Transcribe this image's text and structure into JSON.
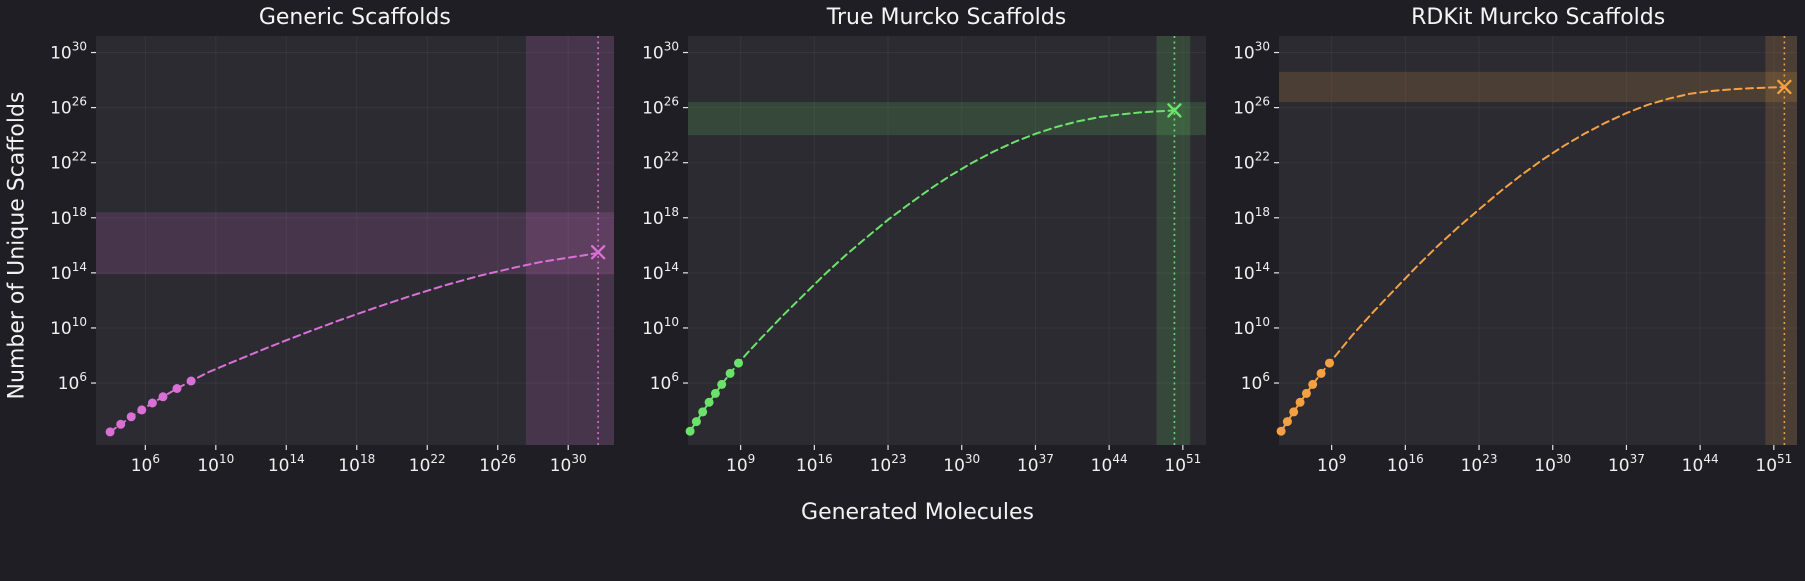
{
  "figure": {
    "background": "#1e1e24",
    "panel_background": "#2b2b31",
    "text_color": "#f0f0f0",
    "grid_color": "rgba(255,255,255,0.05)",
    "xlabel": "Generated Molecules",
    "ylabel": "Number of Unique Scaffolds"
  },
  "chart_data": [
    {
      "type": "line",
      "title": "Generic Scaffolds",
      "color": "#da70d6",
      "xscale": "log",
      "yscale": "log",
      "xlim_log10": [
        3.2,
        32.6
      ],
      "ylim_log10": [
        1.5,
        31.2
      ],
      "xticks_log10": [
        6,
        10,
        14,
        18,
        22,
        26,
        30
      ],
      "yticks_log10": [
        6,
        10,
        14,
        18,
        22,
        26,
        30
      ],
      "curve_log10": [
        [
          4.0,
          2.45
        ],
        [
          4.6,
          3.0
        ],
        [
          5.2,
          3.55
        ],
        [
          5.8,
          4.05
        ],
        [
          6.4,
          4.55
        ],
        [
          7.0,
          5.0
        ],
        [
          7.8,
          5.6
        ],
        [
          8.6,
          6.15
        ],
        [
          9.6,
          6.8
        ],
        [
          11,
          7.55
        ],
        [
          13,
          8.6
        ],
        [
          15,
          9.6
        ],
        [
          17,
          10.55
        ],
        [
          19,
          11.45
        ],
        [
          21,
          12.3
        ],
        [
          23,
          13.1
        ],
        [
          25,
          13.8
        ],
        [
          27,
          14.4
        ],
        [
          28.5,
          14.8
        ],
        [
          30,
          15.1
        ],
        [
          31,
          15.3
        ],
        [
          31.7,
          15.45
        ]
      ],
      "points_log10": [
        [
          4.0,
          2.45
        ],
        [
          4.6,
          3.0
        ],
        [
          5.2,
          3.55
        ],
        [
          5.8,
          4.05
        ],
        [
          6.4,
          4.55
        ],
        [
          7.0,
          5.0
        ],
        [
          7.8,
          5.6
        ],
        [
          8.6,
          6.15
        ]
      ],
      "extrapolated_point_log10": [
        31.7,
        15.5
      ],
      "vline_log10": 31.7,
      "vband_log10": [
        27.6,
        32.6
      ],
      "hband_log10": [
        13.9,
        18.4
      ],
      "curve_style": "dashed",
      "observed_marker": "circle",
      "extrapolated_marker": "x"
    },
    {
      "type": "line",
      "title": "True Murcko Scaffolds",
      "color": "#6be36b",
      "xscale": "log",
      "yscale": "log",
      "xlim_log10": [
        4.0,
        53.2
      ],
      "ylim_log10": [
        1.5,
        31.2
      ],
      "xticks_log10": [
        9,
        16,
        23,
        30,
        37,
        44,
        51
      ],
      "yticks_log10": [
        6,
        10,
        14,
        18,
        22,
        26,
        30
      ],
      "curve_log10": [
        [
          4.2,
          2.5
        ],
        [
          4.8,
          3.2
        ],
        [
          5.4,
          3.9
        ],
        [
          6.0,
          4.6
        ],
        [
          6.6,
          5.25
        ],
        [
          7.2,
          5.9
        ],
        [
          8.0,
          6.7
        ],
        [
          8.8,
          7.45
        ],
        [
          9.6,
          8.15
        ],
        [
          11,
          9.3
        ],
        [
          13,
          10.9
        ],
        [
          15,
          12.4
        ],
        [
          17,
          13.9
        ],
        [
          19,
          15.3
        ],
        [
          21,
          16.6
        ],
        [
          23,
          17.85
        ],
        [
          25,
          19.0
        ],
        [
          27,
          20.1
        ],
        [
          29,
          21.1
        ],
        [
          31,
          22.0
        ],
        [
          33,
          22.8
        ],
        [
          35,
          23.5
        ],
        [
          37,
          24.1
        ],
        [
          39,
          24.6
        ],
        [
          41,
          25.0
        ],
        [
          43,
          25.3
        ],
        [
          45,
          25.5
        ],
        [
          47,
          25.65
        ],
        [
          49,
          25.75
        ],
        [
          50.2,
          25.8
        ]
      ],
      "points_log10": [
        [
          4.2,
          2.5
        ],
        [
          4.8,
          3.2
        ],
        [
          5.4,
          3.9
        ],
        [
          6.0,
          4.6
        ],
        [
          6.6,
          5.25
        ],
        [
          7.2,
          5.9
        ],
        [
          8.0,
          6.7
        ],
        [
          8.8,
          7.45
        ]
      ],
      "extrapolated_point_log10": [
        50.2,
        25.8
      ],
      "vline_log10": 50.2,
      "vband_log10": [
        48.5,
        51.7
      ],
      "hband_log10": [
        24.0,
        26.4
      ],
      "curve_style": "dashed",
      "observed_marker": "circle",
      "extrapolated_marker": "x"
    },
    {
      "type": "line",
      "title": "RDKit Murcko Scaffolds",
      "color": "#f5a142",
      "xscale": "log",
      "yscale": "log",
      "xlim_log10": [
        4.0,
        53.2
      ],
      "ylim_log10": [
        1.5,
        31.2
      ],
      "xticks_log10": [
        9,
        16,
        23,
        30,
        37,
        44,
        51
      ],
      "yticks_log10": [
        6,
        10,
        14,
        18,
        22,
        26,
        30
      ],
      "curve_log10": [
        [
          4.2,
          2.5
        ],
        [
          4.8,
          3.2
        ],
        [
          5.4,
          3.9
        ],
        [
          6.0,
          4.6
        ],
        [
          6.6,
          5.25
        ],
        [
          7.2,
          5.9
        ],
        [
          8.0,
          6.7
        ],
        [
          8.8,
          7.45
        ],
        [
          9.6,
          8.2
        ],
        [
          11,
          9.5
        ],
        [
          13,
          11.2
        ],
        [
          15,
          12.8
        ],
        [
          17,
          14.4
        ],
        [
          19,
          15.9
        ],
        [
          21,
          17.3
        ],
        [
          23,
          18.6
        ],
        [
          25,
          19.9
        ],
        [
          27,
          21.1
        ],
        [
          29,
          22.2
        ],
        [
          31,
          23.2
        ],
        [
          33,
          24.1
        ],
        [
          35,
          24.9
        ],
        [
          37,
          25.6
        ],
        [
          39,
          26.2
        ],
        [
          41,
          26.65
        ],
        [
          43,
          27.0
        ],
        [
          45,
          27.2
        ],
        [
          47,
          27.33
        ],
        [
          49,
          27.42
        ],
        [
          51,
          27.47
        ],
        [
          52.0,
          27.5
        ]
      ],
      "points_log10": [
        [
          4.2,
          2.5
        ],
        [
          4.8,
          3.2
        ],
        [
          5.4,
          3.9
        ],
        [
          6.0,
          4.6
        ],
        [
          6.6,
          5.25
        ],
        [
          7.2,
          5.9
        ],
        [
          8.0,
          6.7
        ],
        [
          8.8,
          7.45
        ]
      ],
      "extrapolated_point_log10": [
        52.0,
        27.5
      ],
      "vline_log10": 52.0,
      "vband_log10": [
        50.2,
        53.2
      ],
      "hband_log10": [
        26.4,
        28.6
      ],
      "curve_style": "dashed",
      "observed_marker": "circle",
      "extrapolated_marker": "x"
    }
  ]
}
